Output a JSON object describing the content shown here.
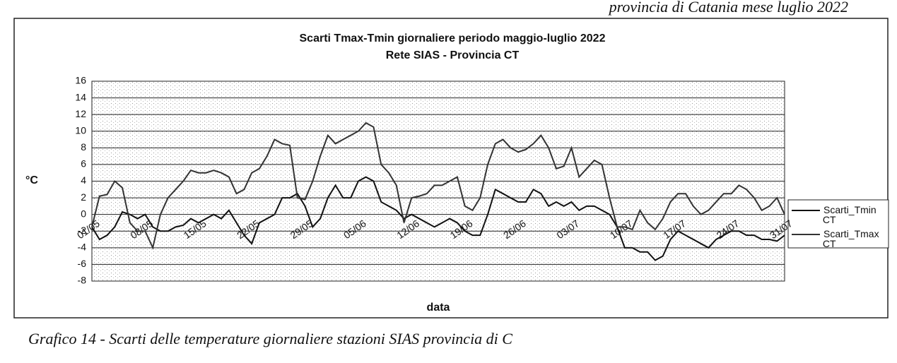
{
  "header": "provincia di Catania mese luglio 2022",
  "caption": "Grafico 14 - Scarti delle temperature giornaliere stazioni SIAS provincia di C",
  "chart_data": {
    "type": "line",
    "title": "Scarti Tmax-Tmin giornaliere periodo maggio-luglio 2022",
    "subtitle": "Rete SIAS - Provincia CT",
    "xlabel": "data",
    "ylabel": "°C",
    "categories": [
      "01/05",
      null,
      null,
      null,
      null,
      null,
      null,
      "08/05",
      null,
      null,
      null,
      null,
      null,
      null,
      "15/05",
      null,
      null,
      null,
      null,
      null,
      null,
      "22/05",
      null,
      null,
      null,
      null,
      null,
      null,
      "29/05",
      null,
      null,
      null,
      null,
      null,
      null,
      "05/06",
      null,
      null,
      null,
      null,
      null,
      null,
      "12/06",
      null,
      null,
      null,
      null,
      null,
      null,
      "19/06",
      null,
      null,
      null,
      null,
      null,
      null,
      "26/06",
      null,
      null,
      null,
      null,
      null,
      null,
      "03/07",
      null,
      null,
      null,
      null,
      null,
      null,
      "10/07",
      null,
      null,
      null,
      null,
      null,
      null,
      "17/07",
      null,
      null,
      null,
      null,
      null,
      null,
      "24/07",
      null,
      null,
      null,
      null,
      null,
      null,
      "31/07"
    ],
    "series": [
      {
        "name": "Scarti_Tmin CT",
        "color": "#111111",
        "values": [
          -1.5,
          -3.0,
          -2.5,
          -1.5,
          0.3,
          0.0,
          -0.5,
          0.0,
          -1.5,
          -2.0,
          -2.0,
          -1.5,
          -1.3,
          -0.5,
          -1.0,
          -0.5,
          0.0,
          -0.5,
          0.5,
          -1.0,
          -2.5,
          -3.5,
          -1.0,
          -0.5,
          0.0,
          2.0,
          2.0,
          2.5,
          1.0,
          -1.5,
          -0.5,
          2.0,
          3.5,
          2.0,
          2.0,
          4.0,
          4.5,
          4.0,
          1.5,
          1.0,
          0.5,
          -0.5,
          0.0,
          -0.5,
          -1.0,
          -1.5,
          -1.0,
          -0.5,
          -1.0,
          -2.0,
          -2.5,
          -2.5,
          0.0,
          3.0,
          2.5,
          2.0,
          1.5,
          1.5,
          3.0,
          2.5,
          1.0,
          1.5,
          1.0,
          1.5,
          0.5,
          1.0,
          1.0,
          0.5,
          0.0,
          -1.5,
          -4.0,
          -4.0,
          -4.5,
          -4.5,
          -5.5,
          -5.0,
          -3.0,
          -2.0,
          -2.5,
          -3.0,
          -3.5,
          -4.0,
          -3.0,
          -2.5,
          -2.0,
          -2.0,
          -2.5,
          -2.5,
          -3.0,
          -3.0,
          -3.2,
          -2.5
        ]
      },
      {
        "name": "Scarti_Tmax CT",
        "color": "#333333",
        "values": [
          -1.5,
          2.2,
          2.4,
          4.0,
          3.2,
          -1.0,
          -2.0,
          -2.0,
          -4.0,
          0.0,
          2.0,
          3.0,
          4.0,
          5.3,
          5.0,
          5.0,
          5.3,
          5.0,
          4.5,
          2.5,
          3.0,
          5.0,
          5.5,
          7.0,
          9.0,
          8.5,
          8.3,
          2.0,
          1.8,
          4.0,
          7.0,
          9.5,
          8.5,
          9.0,
          9.5,
          10.0,
          11.0,
          10.5,
          6.0,
          5.0,
          3.5,
          -1.0,
          2.0,
          2.2,
          2.5,
          3.5,
          3.5,
          4.0,
          4.5,
          1.0,
          0.5,
          2.0,
          6.0,
          8.5,
          9.0,
          8.0,
          7.5,
          7.8,
          8.5,
          9.5,
          8.0,
          5.5,
          5.8,
          8.0,
          4.5,
          5.5,
          6.5,
          6.0,
          2.0,
          -1.5,
          -1.5,
          -1.8,
          0.5,
          -1.0,
          -1.8,
          -0.5,
          1.5,
          2.5,
          2.5,
          1.0,
          0.0,
          0.5,
          1.5,
          2.5,
          2.5,
          3.5,
          3.0,
          2.0,
          0.5,
          1.0,
          2.0,
          0.0
        ]
      }
    ],
    "ylim": [
      -8,
      16
    ],
    "yticks": [
      -8,
      -6,
      -4,
      -2,
      0,
      2,
      4,
      6,
      8,
      10,
      12,
      14,
      16
    ],
    "grid": true,
    "legend": "right"
  }
}
